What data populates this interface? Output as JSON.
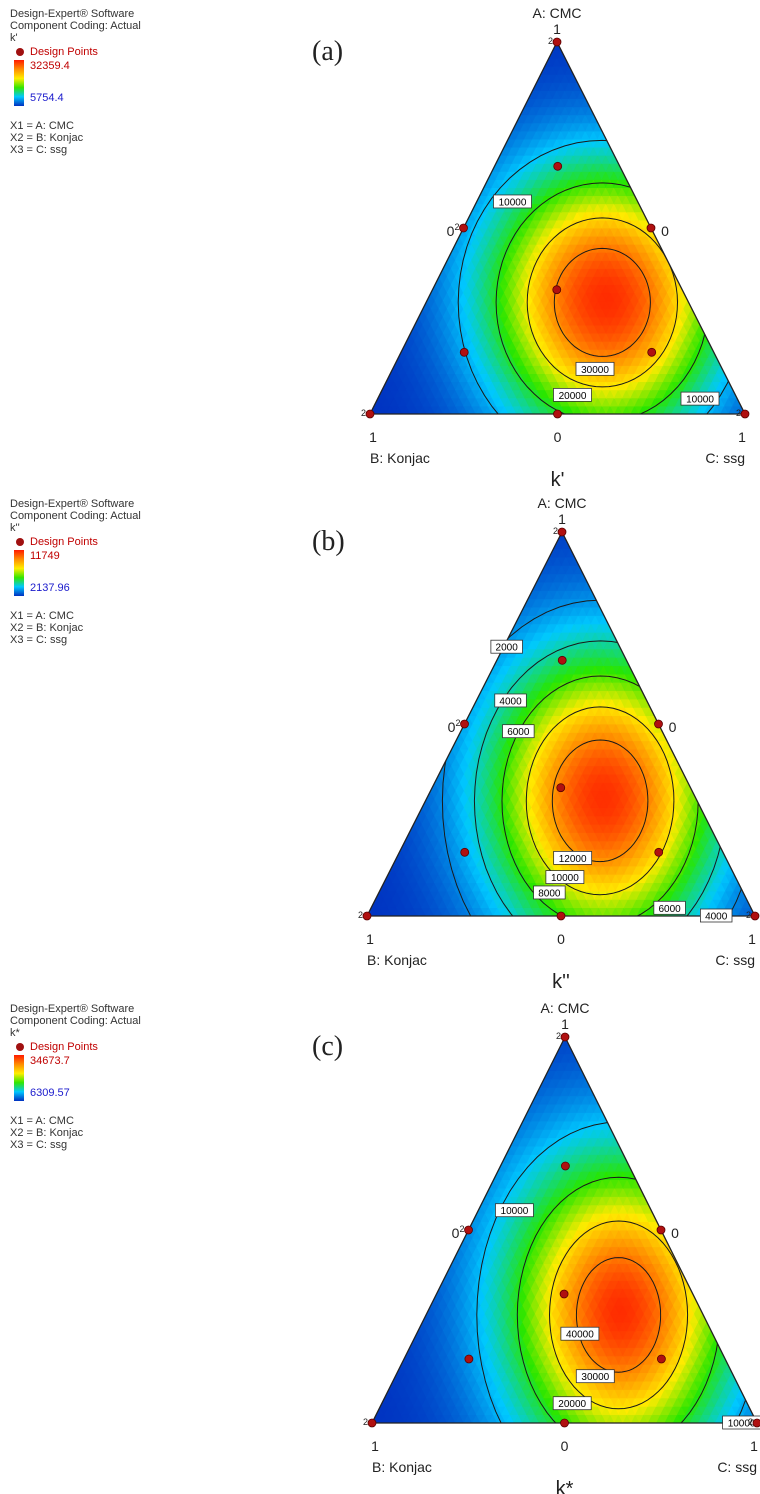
{
  "legend_common": {
    "software": "Design-Expert® Software",
    "coding": "Component Coding: Actual",
    "design_points": "Design Points",
    "x1": "X1 = A: CMC",
    "x2": "X2 = B: Konjac",
    "x3": "X3 = C: ssg"
  },
  "axes": {
    "a_title": "A: CMC",
    "b_title": "B: Konjac",
    "c_title": "C: ssg",
    "tick_one": "1",
    "tick_zero": "0",
    "replicate_mark": "2"
  },
  "panels": [
    {
      "label": "(a)",
      "response": "k'",
      "legend_max": "32359.4",
      "legend_min": "5754.4",
      "colors": {
        "high": "#ff1a00",
        "low": "#0030c0"
      }
    },
    {
      "label": "(b)",
      "response": "k''",
      "legend_max": "11749",
      "legend_min": "2137.96",
      "colors": {
        "high": "#ff1a00",
        "low": "#0030c0"
      }
    },
    {
      "label": "(c)",
      "response": "k*",
      "legend_max": "34673.7",
      "legend_min": "6309.57",
      "colors": {
        "high": "#ff1a00",
        "low": "#0030c0"
      }
    }
  ],
  "chart_data": [
    {
      "type": "heatmap",
      "subtype": "ternary-contour",
      "response": "k'",
      "components": [
        "A: CMC",
        "B: Konjac",
        "C: ssg"
      ],
      "range": [
        5754.4,
        32359.4
      ],
      "contour_labels": [
        "10000",
        "10000",
        "20000",
        "30000"
      ],
      "design_points": [
        [
          1,
          0,
          0
        ],
        [
          0,
          1,
          0
        ],
        [
          0,
          0,
          1
        ],
        [
          0.5,
          0.5,
          0
        ],
        [
          0.5,
          0,
          0.5
        ],
        [
          0,
          0.5,
          0.5
        ],
        [
          0.667,
          0.167,
          0.167
        ],
        [
          0.167,
          0.667,
          0.167
        ],
        [
          0.167,
          0.167,
          0.667
        ],
        [
          0.333,
          0.333,
          0.333
        ]
      ],
      "replicated_points": [
        [
          1,
          0,
          0
        ],
        [
          0,
          1,
          0
        ],
        [
          0,
          0,
          1
        ],
        [
          0.5,
          0.5,
          0
        ]
      ]
    },
    {
      "type": "heatmap",
      "subtype": "ternary-contour",
      "response": "k''",
      "range": [
        2137.96,
        11749
      ],
      "contour_labels": [
        "2000",
        "4000",
        "6000",
        "12000",
        "10000",
        "8000",
        "6000",
        "4000"
      ],
      "design_points": [
        [
          1,
          0,
          0
        ],
        [
          0,
          1,
          0
        ],
        [
          0,
          0,
          1
        ],
        [
          0.5,
          0.5,
          0
        ],
        [
          0.5,
          0,
          0.5
        ],
        [
          0,
          0.5,
          0.5
        ],
        [
          0.667,
          0.167,
          0.167
        ],
        [
          0.167,
          0.667,
          0.167
        ],
        [
          0.167,
          0.167,
          0.667
        ],
        [
          0.333,
          0.333,
          0.333
        ]
      ],
      "replicated_points": [
        [
          1,
          0,
          0
        ],
        [
          0,
          1,
          0
        ],
        [
          0,
          0,
          1
        ],
        [
          0.5,
          0.5,
          0
        ]
      ]
    },
    {
      "type": "heatmap",
      "subtype": "ternary-contour",
      "response": "k*",
      "range": [
        6309.57,
        34673.7
      ],
      "contour_labels": [
        "10000",
        "40000",
        "30000",
        "20000",
        "10000"
      ],
      "design_points": [
        [
          1,
          0,
          0
        ],
        [
          0,
          1,
          0
        ],
        [
          0,
          0,
          1
        ],
        [
          0.5,
          0.5,
          0
        ],
        [
          0.5,
          0,
          0.5
        ],
        [
          0,
          0.5,
          0.5
        ],
        [
          0.667,
          0.167,
          0.167
        ],
        [
          0.167,
          0.667,
          0.167
        ],
        [
          0.167,
          0.167,
          0.667
        ],
        [
          0.333,
          0.333,
          0.333
        ]
      ],
      "replicated_points": [
        [
          1,
          0,
          0
        ],
        [
          0,
          1,
          0
        ],
        [
          0,
          0,
          1
        ],
        [
          0.5,
          0.5,
          0
        ]
      ]
    }
  ]
}
